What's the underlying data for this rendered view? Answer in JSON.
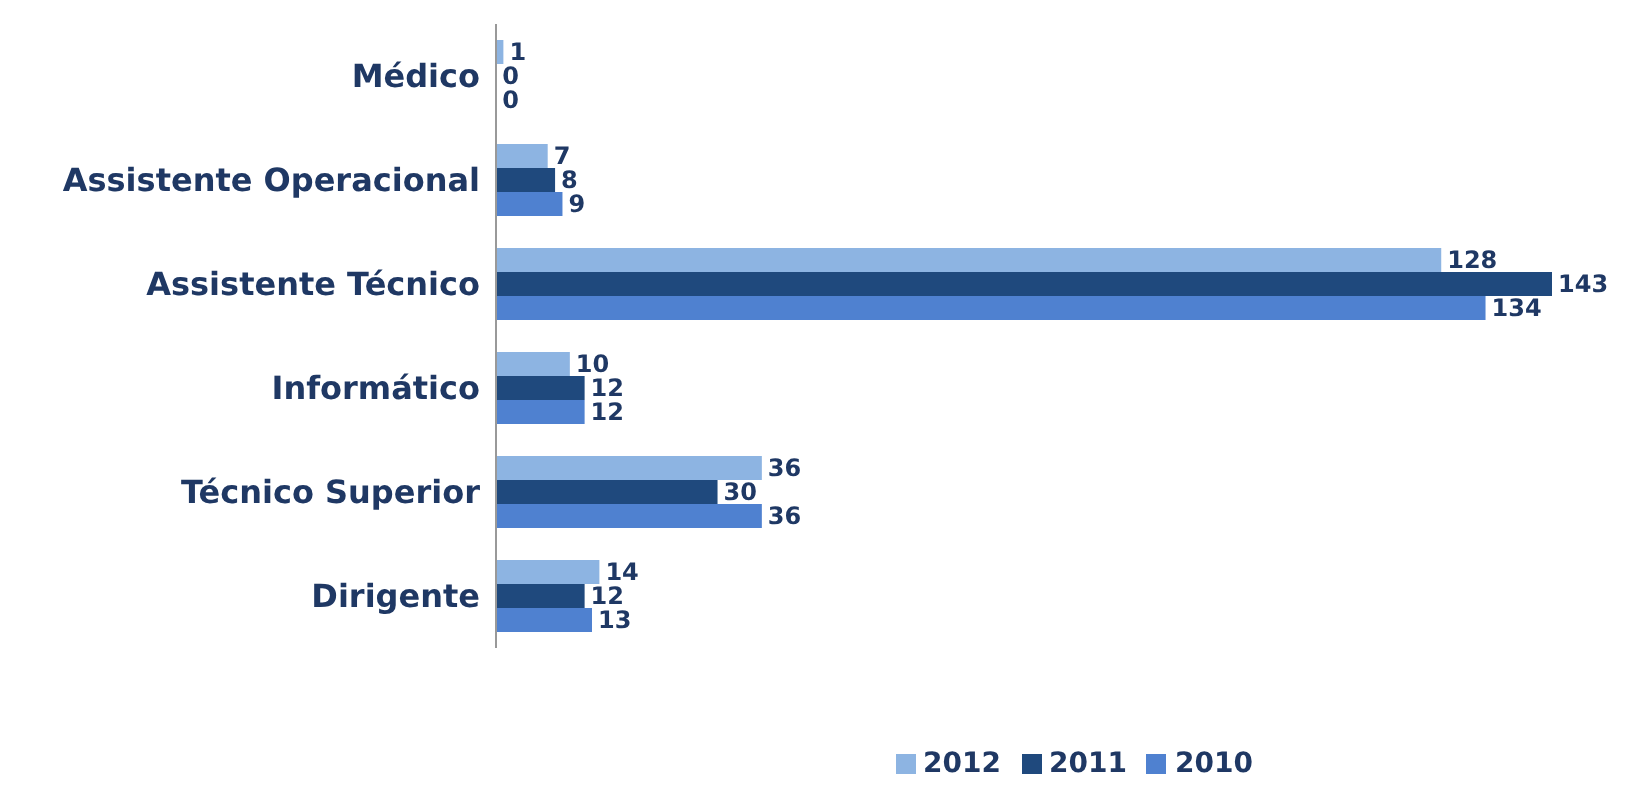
{
  "chart_data": {
    "type": "bar",
    "orientation": "horizontal",
    "categories": [
      "Médico",
      "Assistente Operacional",
      "Assistente Técnico",
      "Informático",
      "Técnico Superior",
      "Dirigente"
    ],
    "series": [
      {
        "name": "2012",
        "color": "#8db4e2",
        "values": [
          1,
          7,
          128,
          10,
          36,
          14
        ]
      },
      {
        "name": "2011",
        "color": "#1f497d",
        "values": [
          0,
          8,
          143,
          12,
          30,
          12
        ]
      },
      {
        "name": "2010",
        "color": "#4f81d0",
        "values": [
          0,
          9,
          134,
          12,
          36,
          13
        ]
      }
    ],
    "data_labels": true,
    "legend": "bottom",
    "grid": false
  }
}
